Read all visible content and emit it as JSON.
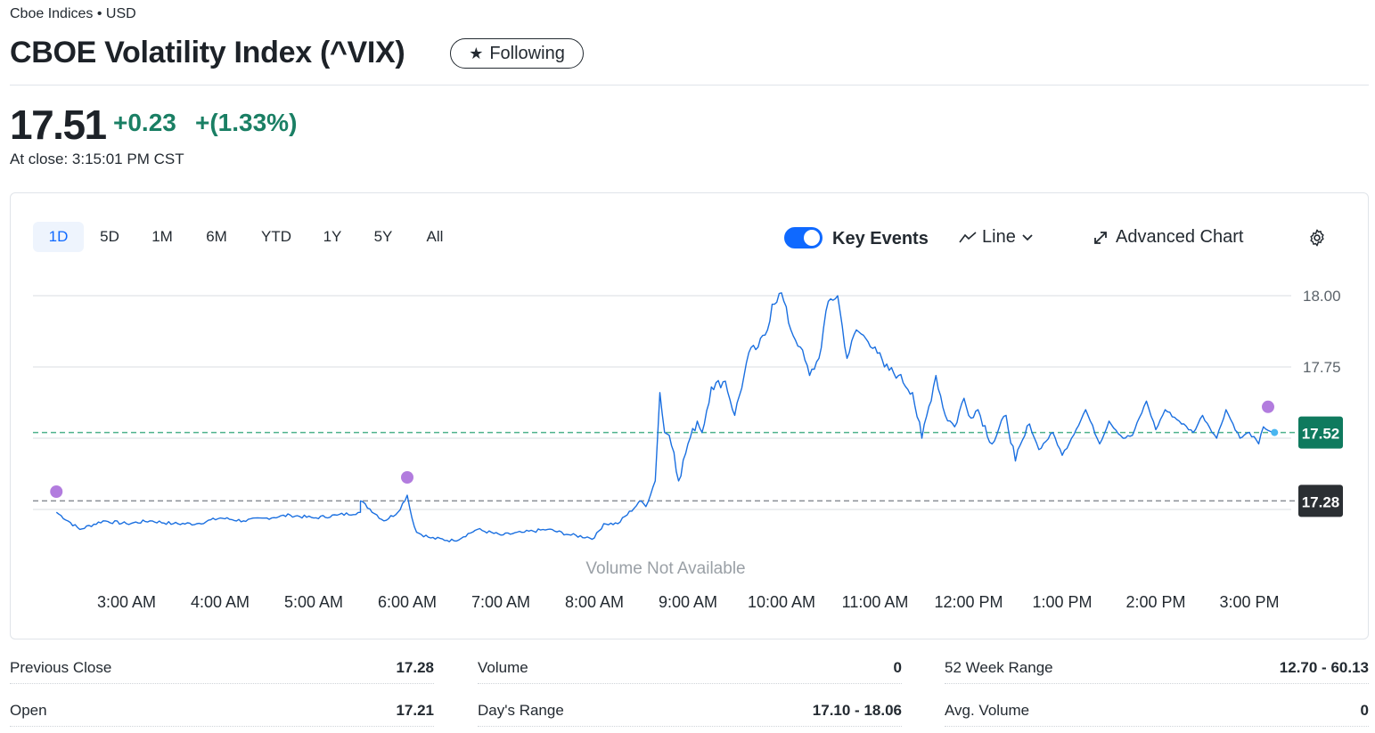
{
  "header": {
    "exchange": "Cboe Indices • USD",
    "title": "CBOE Volatility Index (^VIX)",
    "follow_label": "Following"
  },
  "quote": {
    "price": "17.51",
    "change": "+0.23",
    "change_pct": "+(1.33%)",
    "close_time": "At close: 3:15:01 PM CST"
  },
  "toolbar": {
    "ranges": [
      "1D",
      "5D",
      "1M",
      "6M",
      "YTD",
      "1Y",
      "5Y",
      "All"
    ],
    "active_range": "1D",
    "key_events_label": "Key Events",
    "key_events_on": true,
    "chart_type_label": "Line",
    "advanced_label": "Advanced Chart"
  },
  "colors": {
    "line": "#1a6fe0",
    "positive": "#1a7f64",
    "current_tag": "#0f7a5e",
    "prev_close_tag": "#2b2f33",
    "event_dot": "#b27cde",
    "accent": "#0f69ff"
  },
  "chart_data": {
    "type": "line",
    "title": "",
    "xlabel": "",
    "ylabel": "",
    "x_ticks": [
      "3:00 AM",
      "4:00 AM",
      "5:00 AM",
      "6:00 AM",
      "7:00 AM",
      "8:00 AM",
      "9:00 AM",
      "10:00 AM",
      "11:00 AM",
      "12:00 PM",
      "1:00 PM",
      "2:00 PM",
      "3:00 PM"
    ],
    "y_ticks": [
      "18.00",
      "17.75"
    ],
    "ylim": [
      17.06,
      18.09
    ],
    "current_value": "17.52",
    "previous_close": "17.28",
    "volume_note": "Volume Not Available",
    "grid": true,
    "series": [
      {
        "values_time_hours": [
          2.25,
          2.5,
          2.75,
          3.0,
          3.25,
          3.5,
          3.75,
          4.0,
          4.25,
          4.5,
          4.75,
          5.0,
          5.25,
          5.5,
          5.5,
          5.75,
          5.9,
          6.0,
          6.05,
          6.1,
          6.25,
          6.5,
          6.75,
          7.0,
          7.25,
          7.5,
          7.75,
          8.0,
          8.1,
          8.25,
          8.5,
          8.55,
          8.65,
          8.7,
          8.75,
          8.8,
          8.85,
          8.9,
          9.0,
          9.1,
          9.15,
          9.25,
          9.4,
          9.5,
          9.6,
          9.65,
          9.75,
          9.85,
          9.9,
          10.0,
          10.1,
          10.2,
          10.3,
          10.4,
          10.5,
          10.6,
          10.7,
          10.8,
          10.9,
          11.0,
          11.1,
          11.25,
          11.4,
          11.5,
          11.65,
          11.75,
          11.85,
          11.95,
          12.0,
          12.1,
          12.25,
          12.4,
          12.5,
          12.65,
          12.75,
          12.9,
          13.0,
          13.1,
          13.25,
          13.4,
          13.5,
          13.65,
          13.75,
          13.9,
          14.0,
          14.1,
          14.25,
          14.4,
          14.5,
          14.65,
          14.75,
          14.9,
          15.0,
          15.1,
          15.15,
          15.25
        ],
        "values": [
          17.24,
          17.18,
          17.21,
          17.2,
          17.21,
          17.2,
          17.2,
          17.22,
          17.21,
          17.22,
          17.23,
          17.22,
          17.23,
          17.24,
          17.28,
          17.21,
          17.24,
          17.3,
          17.22,
          17.17,
          17.15,
          17.14,
          17.18,
          17.16,
          17.17,
          17.18,
          17.16,
          17.15,
          17.2,
          17.2,
          17.28,
          17.26,
          17.35,
          17.66,
          17.52,
          17.51,
          17.45,
          17.35,
          17.48,
          17.56,
          17.52,
          17.68,
          17.7,
          17.58,
          17.72,
          17.8,
          17.82,
          17.88,
          17.97,
          18.01,
          17.88,
          17.82,
          17.72,
          17.78,
          17.98,
          18.0,
          17.78,
          17.88,
          17.85,
          17.82,
          17.75,
          17.72,
          17.66,
          17.5,
          17.72,
          17.58,
          17.54,
          17.64,
          17.58,
          17.6,
          17.48,
          17.58,
          17.42,
          17.55,
          17.46,
          17.52,
          17.44,
          17.5,
          17.6,
          17.48,
          17.56,
          17.5,
          17.51,
          17.63,
          17.53,
          17.6,
          17.56,
          17.52,
          17.58,
          17.5,
          17.6,
          17.5,
          17.52,
          17.48,
          17.54,
          17.52
        ]
      }
    ],
    "key_events_hours": [
      2.25,
      6.0,
      15.2
    ]
  },
  "stats": [
    {
      "label": "Previous Close",
      "value": "17.28"
    },
    {
      "label": "Volume",
      "value": "0"
    },
    {
      "label": "52 Week Range",
      "value": "12.70 - 60.13"
    },
    {
      "label": "Open",
      "value": "17.21"
    },
    {
      "label": "Day's Range",
      "value": "17.10 - 18.06"
    },
    {
      "label": "Avg. Volume",
      "value": "0"
    }
  ]
}
